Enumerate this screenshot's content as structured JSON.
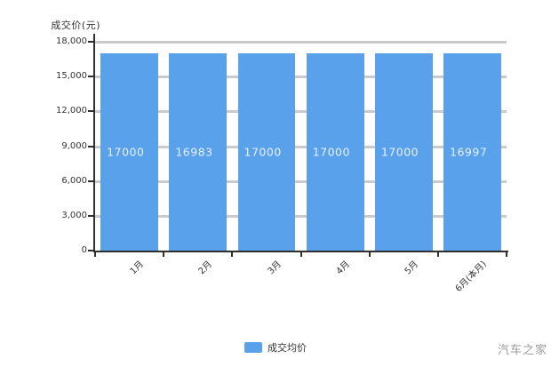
{
  "watermark": "汽车之家",
  "chart_data": {
    "type": "bar",
    "title": "",
    "ylabel": "成交价(元)",
    "xlabel": "",
    "categories": [
      "1月",
      "2月",
      "3月",
      "4月",
      "5月",
      "6月(本月)"
    ],
    "values": [
      17000,
      16983,
      17000,
      17000,
      17000,
      16997
    ],
    "value_labels": [
      "17000",
      "16983",
      "17000",
      "17000",
      "17000",
      "16997"
    ],
    "ylim": [
      0,
      18000
    ],
    "ytick_step": 3000,
    "yticks": [
      {
        "value": 18000,
        "label": "18,000"
      },
      {
        "value": 15000,
        "label": "15,000"
      },
      {
        "value": 12000,
        "label": "12,000"
      },
      {
        "value": 9000,
        "label": "9,000"
      },
      {
        "value": 6000,
        "label": "6,000"
      },
      {
        "value": 3000,
        "label": "3,000"
      },
      {
        "value": 0,
        "label": "0"
      }
    ],
    "grid": true,
    "legend_position": "bottom",
    "legend": {
      "label": "成交均价"
    },
    "colors": {
      "bar": "#59a1eb",
      "bar_value_text": "#e6f0fc",
      "gridline": "#cacaca",
      "axis": "#2f2f2f",
      "tick_text": "#333333",
      "watermark": "#9b9b9b"
    }
  }
}
